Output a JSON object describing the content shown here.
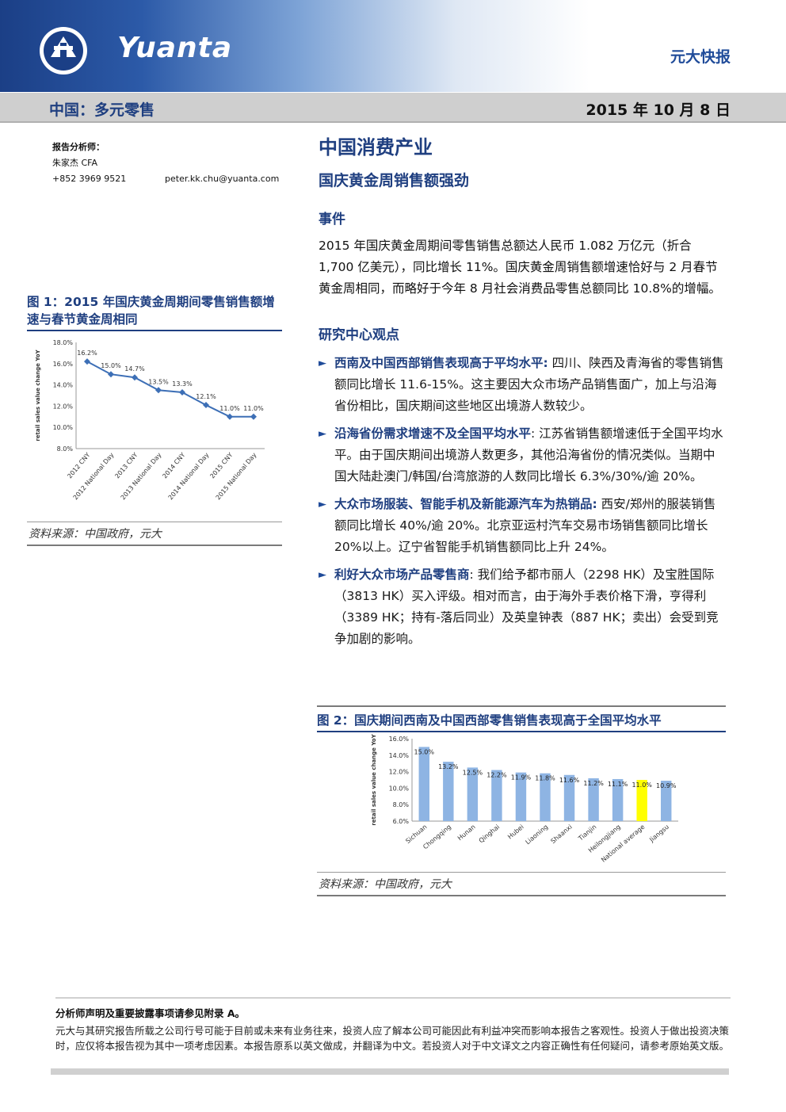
{
  "header": {
    "brand": "Yuanta",
    "report_type": "元大快报",
    "sector": "中国：多元零售",
    "date": "2015 年 10 月 8 日"
  },
  "analyst": {
    "label": "报告分析师：",
    "name": "朱家杰 CFA",
    "phone": "+852 3969 9521",
    "email": "peter.kk.chu@yuanta.com"
  },
  "main": {
    "title": "中国消费产业",
    "subtitle": "国庆黄金周销售额强劲",
    "event_heading": "事件",
    "event_text": "2015 年国庆黄金周期间零售销售总额达人民币 1.082 万亿元（折合 1,700 亿美元），同比增长 11%。国庆黄金周销售额增速恰好与 2 月春节黄金周相同，而略好于今年 8 月社会消费品零售总额同比 10.8%的增幅。",
    "view_heading": "研究中心观点",
    "bullets": [
      {
        "bold": "西南及中国西部销售表现高于平均水平:",
        "text": " 四川、陕西及青海省的零售销售额同比增长 11.6-15%。这主要因大众市场产品销售面广，加上与沿海省份相比，国庆期间这些地区出境游人数较少。"
      },
      {
        "bold": "沿海省份需求增速不及全国平均水平",
        "text": ": 江苏省销售额增速低于全国平均水平。由于国庆期间出境游人数更多，其他沿海省份的情况类似。当期中国大陆赴澳门/韩国/台湾旅游的人数同比增长 6.3%/30%/逾 20%。"
      },
      {
        "bold": "大众市场服装、智能手机及新能源汽车为热销品:",
        "text": " 西安/郑州的服装销售额同比增长 40%/逾 20%。北京亚运村汽车交易市场销售额同比增长 20%以上。辽宁省智能手机销售额同比上升 24%。"
      },
      {
        "bold": "利好大众市场产品零售商",
        "text": ": 我们给予都市丽人（2298 HK）及宝胜国际（3813 HK）买入评级。相对而言，由于海外手表价格下滑，亨得利（3389 HK；持有-落后同业）及英皇钟表（887 HK；卖出）会受到竞争加剧的影响。"
      }
    ]
  },
  "fig1": {
    "title": "图 1：2015 年国庆黄金周期间零售销售额增速与春节黄金周相同",
    "source": "资料来源：中国政府，元大"
  },
  "fig2": {
    "title": "图 2：国庆期间西南及中国西部零售销售表现高于全国平均水平",
    "source": "资料来源：中国政府，元大"
  },
  "footer": {
    "heading": "分析师声明及重要披露事项请参见附录 A。",
    "text": "元大与其研究报告所载之公司行号可能于目前或未来有业务往来，投资人应了解本公司可能因此有利益冲突而影响本报告之客观性。投资人于做出投资决策时，应仅将本报告视为其中一项考虑因素。本报告原系以英文做成，并翻译为中文。若投资人对于中文译文之内容正确性有任何疑问，请参考原始英文版。"
  },
  "colors": {
    "brand_blue": "#1f3f80",
    "line_series": "#3d6fb6",
    "bar_series": "#8eb4e3",
    "bar_highlight": "#ffff00"
  },
  "chart_data": [
    {
      "type": "line",
      "categories": [
        "2012 CNY",
        "2012 National Day",
        "2013 CNY",
        "2013 National Day",
        "2014 CNY",
        "2014 National Day",
        "2015 CNY",
        "2015 National Day"
      ],
      "values": [
        16.2,
        15.0,
        14.7,
        13.5,
        13.3,
        12.1,
        11.0,
        11.0
      ],
      "labels": [
        "16.2%",
        "15.0%",
        "14.7%",
        "13.5%",
        "13.3%",
        "12.1%",
        "11.0%",
        "11.0%"
      ],
      "ylabel": "retail sales value change YoY",
      "ylim": [
        8,
        18
      ],
      "yticks": [
        "8.0%",
        "10.0%",
        "12.0%",
        "14.0%",
        "16.0%",
        "18.0%"
      ],
      "grid": false
    },
    {
      "type": "bar",
      "categories": [
        "Sichuan",
        "Chongqing",
        "Hunan",
        "Qinghai",
        "Hubei",
        "Liaoning",
        "Shaanxi",
        "Tianjin",
        "Heilongjiang",
        "National average",
        "Jiangsu"
      ],
      "values": [
        15.0,
        13.2,
        12.5,
        12.2,
        11.9,
        11.8,
        11.6,
        11.2,
        11.1,
        11.0,
        10.9
      ],
      "labels": [
        "15.0%",
        "13.2%",
        "12.5%",
        "12.2%",
        "11.9%",
        "11.8%",
        "11.6%",
        "11.2%",
        "11.1%",
        "11.0%",
        "10.9%"
      ],
      "highlight": "National average",
      "ylabel": "retail sales value change YoY",
      "ylim": [
        6,
        16
      ],
      "yticks": [
        "6.0%",
        "8.0%",
        "10.0%",
        "12.0%",
        "14.0%",
        "16.0%"
      ],
      "grid": false
    }
  ]
}
